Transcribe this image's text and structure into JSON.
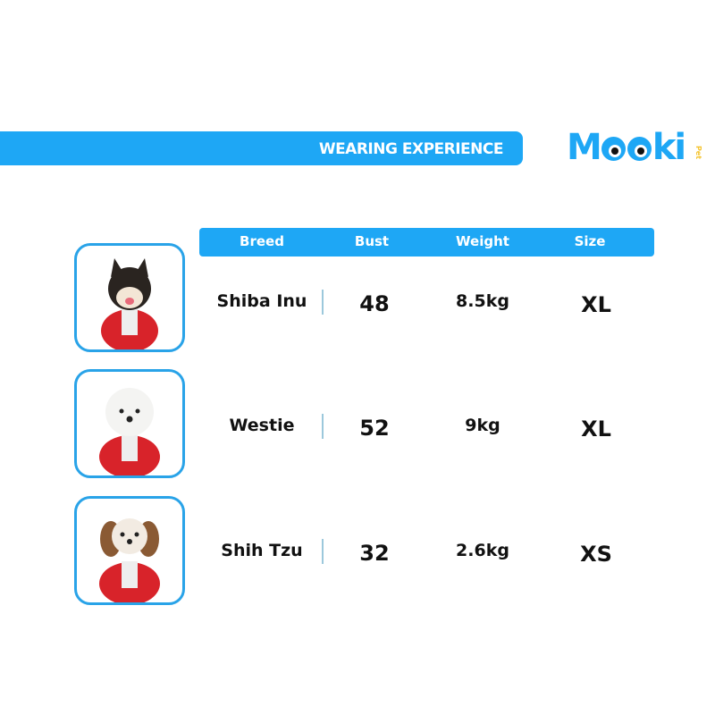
{
  "banner": {
    "title": "WEARING EXPERIENCE"
  },
  "logo": {
    "text": "Mooki",
    "sub": "Pet",
    "colors": {
      "brand": "#1ea7f5",
      "accent": "#f4c430"
    }
  },
  "table": {
    "headers": [
      "Breed",
      "Bust",
      "Weight",
      "Size"
    ],
    "rows": [
      {
        "breed": "Shiba Inu",
        "bust": "48",
        "weight": "8.5kg",
        "size": "XL",
        "photo": "shiba-inu-in-red-sweater"
      },
      {
        "breed": "Westie",
        "bust": "52",
        "weight": "9kg",
        "size": "XL",
        "photo": "westie-in-red-sweater"
      },
      {
        "breed": "Shih Tzu",
        "bust": "32",
        "weight": "2.6kg",
        "size": "XS",
        "photo": "shih-tzu-in-red-sweater"
      }
    ]
  }
}
